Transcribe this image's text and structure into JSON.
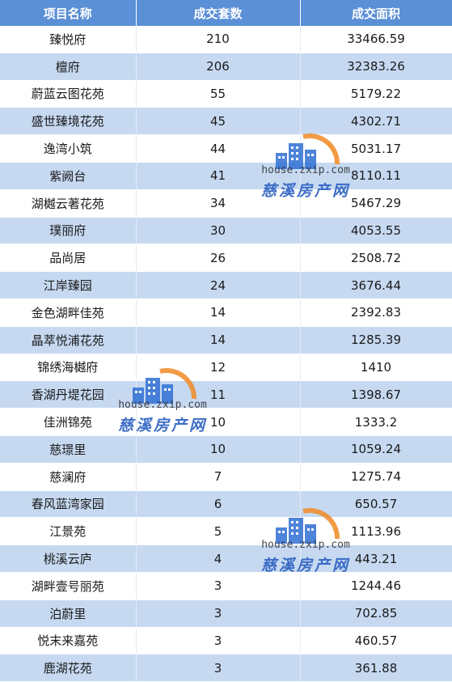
{
  "table": {
    "headers": [
      "项目名称",
      "成交套数",
      "成交面积"
    ],
    "rows": [
      [
        "臻悦府",
        "210",
        "33466.59"
      ],
      [
        "檀府",
        "206",
        "32383.26"
      ],
      [
        "蔚蓝云图花苑",
        "55",
        "5179.22"
      ],
      [
        "盛世臻境花苑",
        "45",
        "4302.71"
      ],
      [
        "逸湾小筑",
        "44",
        "5031.17"
      ],
      [
        "紫阙台",
        "41",
        "8110.11"
      ],
      [
        "湖樾云著花苑",
        "34",
        "5467.29"
      ],
      [
        "璞丽府",
        "30",
        "4053.55"
      ],
      [
        "品尚居",
        "26",
        "2508.72"
      ],
      [
        "江岸臻园",
        "24",
        "3676.44"
      ],
      [
        "金色湖畔佳苑",
        "14",
        "2392.83"
      ],
      [
        "晶萃悦浦花苑",
        "14",
        "1285.39"
      ],
      [
        "锦绣海樾府",
        "12",
        "1410"
      ],
      [
        "香湖丹堤花园",
        "11",
        "1398.67"
      ],
      [
        "佳洲锦苑",
        "10",
        "1333.2"
      ],
      [
        "慈璟里",
        "10",
        "1059.24"
      ],
      [
        "慈澜府",
        "7",
        "1275.74"
      ],
      [
        "春风蓝湾家园",
        "6",
        "650.57"
      ],
      [
        "江景苑",
        "5",
        "1113.96"
      ],
      [
        "桃溪云庐",
        "4",
        "443.21"
      ],
      [
        "湖畔壹号丽苑",
        "3",
        "1244.46"
      ],
      [
        "泊蔚里",
        "3",
        "702.85"
      ],
      [
        "悦末来嘉苑",
        "3",
        "460.57"
      ],
      [
        "鹿湖花苑",
        "3",
        "361.88"
      ]
    ]
  },
  "watermark": {
    "domain": "house.zxip.com",
    "brand": "慈溪房产网",
    "icon": "building-logo-icon",
    "color_blue": "#2f6fd3",
    "color_orange": "#f08a24"
  },
  "colors": {
    "header_bg": "#5b8fd6",
    "alt_row_bg": "#c6d9f1"
  }
}
